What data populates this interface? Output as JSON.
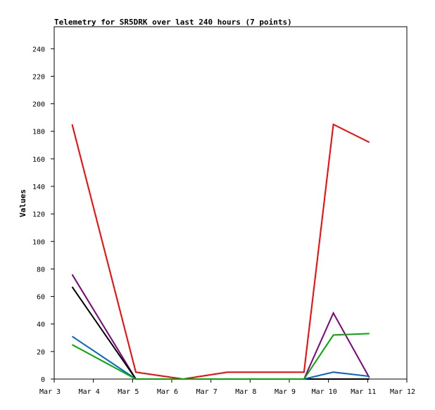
{
  "chart_data": {
    "type": "line",
    "title": "Telemetry for SR5DRK over last 240 hours (7 points)",
    "xlabel": "",
    "ylabel": "Values",
    "x_ticks": [
      "Mar 3",
      "Mar 4",
      "Mar 5",
      "Mar 6",
      "Mar 7",
      "Mar 8",
      "Mar 9",
      "Mar 10",
      "Mar 11",
      "Mar 12"
    ],
    "y_ticks": [
      0,
      20,
      40,
      60,
      80,
      100,
      120,
      140,
      160,
      180,
      200,
      220,
      240
    ],
    "xlim": [
      "2024-03-03T00:00",
      "2024-03-12T00:00"
    ],
    "ylim": [
      0,
      256
    ],
    "grid": false,
    "legend": "none",
    "x": [
      "2024-03-03T11:00",
      "2024-03-05T02:00",
      "2024-03-06T07:00",
      "2024-03-07T10:00",
      "2024-03-09T09:00",
      "2024-03-10T03:00",
      "2024-03-11T01:00"
    ],
    "series": [
      {
        "color": "#ff0000",
        "values": [
          185,
          5,
          0,
          5,
          5,
          185,
          172
        ]
      },
      {
        "color": "#800080",
        "values": [
          76,
          0,
          0,
          0,
          0,
          48,
          1
        ]
      },
      {
        "color": "#000000",
        "values": [
          67,
          0,
          0,
          0,
          0,
          0,
          0
        ]
      },
      {
        "color": "#0066cc",
        "values": [
          31,
          0,
          0,
          0,
          0,
          5,
          2
        ]
      },
      {
        "color": "#00aa00",
        "values": [
          25,
          0,
          0,
          0,
          0,
          32,
          33
        ]
      }
    ]
  }
}
